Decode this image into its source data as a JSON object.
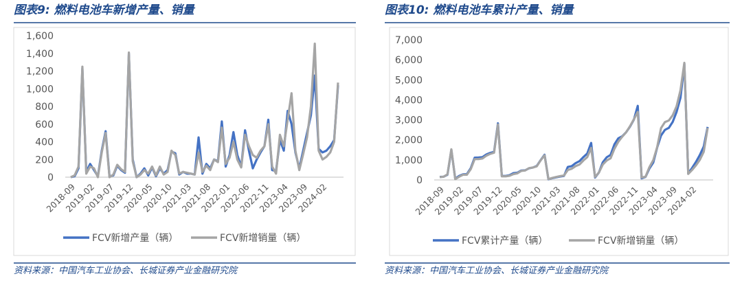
{
  "chart_data": [
    {
      "type": "line",
      "title": "图表9: 燃料电池车新增产量、销量",
      "source": "资料来源：中国汽车工业协会、长城证券产业金融研究院",
      "categories": [
        "2018-09",
        null,
        null,
        null,
        null,
        "2019-02",
        null,
        null,
        null,
        null,
        "2019-07",
        null,
        null,
        null,
        null,
        "2019-12",
        null,
        null,
        null,
        null,
        "2020-05",
        null,
        null,
        null,
        null,
        "2020-10",
        null,
        null,
        null,
        null,
        "2021-03",
        null,
        null,
        null,
        null,
        "2021-08",
        null,
        null,
        null,
        null,
        "2022-01",
        null,
        null,
        null,
        null,
        "2022-06",
        null,
        null,
        null,
        null,
        "2022-11",
        null,
        null,
        null,
        null,
        "2023-04",
        null,
        null,
        null,
        null,
        "2023-09",
        null,
        null,
        null,
        null,
        "2024-02",
        null,
        null,
        null,
        null
      ],
      "series": [
        {
          "name": "FCV新增产量（辆）",
          "color": "#4472c4",
          "values": [
            0,
            10,
            100,
            1230,
            60,
            150,
            80,
            10,
            300,
            520,
            10,
            20,
            130,
            80,
            50,
            1400,
            200,
            0,
            40,
            100,
            20,
            110,
            10,
            100,
            40,
            80,
            290,
            270,
            30,
            60,
            40,
            40,
            30,
            450,
            40,
            150,
            100,
            200,
            180,
            630,
            120,
            250,
            510,
            250,
            120,
            530,
            300,
            100,
            200,
            280,
            350,
            650,
            80,
            70,
            420,
            300,
            750,
            600,
            280,
            100,
            300,
            500,
            700,
            1150,
            320,
            280,
            300,
            350,
            420,
            1040
          ]
        },
        {
          "name": "FCV新增销量（辆）",
          "color": "#a5a5a5",
          "values": [
            0,
            20,
            120,
            1250,
            40,
            120,
            100,
            0,
            280,
            500,
            0,
            30,
            140,
            90,
            60,
            1410,
            180,
            0,
            30,
            80,
            40,
            120,
            20,
            120,
            30,
            60,
            300,
            250,
            40,
            60,
            50,
            40,
            30,
            280,
            60,
            130,
            80,
            200,
            170,
            560,
            150,
            220,
            400,
            200,
            110,
            480,
            350,
            250,
            220,
            300,
            350,
            600,
            120,
            40,
            480,
            350,
            650,
            950,
            300,
            80,
            260,
            450,
            800,
            1510,
            300,
            200,
            230,
            280,
            400,
            1070
          ]
        }
      ],
      "ylim": [
        0,
        1600
      ],
      "yticks": [
        0,
        200,
        400,
        600,
        800,
        {
          "value": 1000,
          "label": "1,000"
        },
        {
          "value": 1200,
          "label": "1,200"
        },
        {
          "value": 1400,
          "label": "1,400"
        },
        {
          "value": 1600,
          "label": "1,600"
        }
      ]
    },
    {
      "type": "line",
      "title": "图表10: 燃料电池车累计产量、销量",
      "source": "资料来源：中国汽车工业协会、长城证券产业金融研究院",
      "categories": [
        "2018-09",
        null,
        null,
        null,
        null,
        "2019-02",
        null,
        null,
        null,
        null,
        "2019-07",
        null,
        null,
        null,
        null,
        "2019-12",
        null,
        null,
        null,
        null,
        "2020-05",
        null,
        null,
        null,
        null,
        "2020-10",
        null,
        null,
        null,
        null,
        "2021-03",
        null,
        null,
        null,
        null,
        "2021-08",
        null,
        null,
        null,
        null,
        "2022-01",
        null,
        null,
        null,
        null,
        "2022-06",
        null,
        null,
        null,
        null,
        "2022-11",
        null,
        null,
        null,
        null,
        "2023-04",
        null,
        null,
        null,
        null,
        "2023-09",
        null,
        null,
        null,
        null,
        "2024-02",
        null,
        null,
        null,
        null
      ],
      "series": [
        {
          "name": "FCV累计产量（辆）",
          "color": "#4472c4",
          "values": [
            150,
            160,
            260,
            1500,
            60,
            200,
            280,
            290,
            590,
            1110,
            1120,
            1140,
            1270,
            1350,
            1400,
            2830,
            200,
            200,
            240,
            340,
            360,
            470,
            480,
            580,
            620,
            700,
            990,
            1260,
            30,
            90,
            130,
            170,
            200,
            650,
            690,
            840,
            940,
            1140,
            1320,
            1850,
            120,
            370,
            880,
            1130,
            1250,
            1780,
            2080,
            2180,
            2380,
            2660,
            3010,
            3700,
            80,
            150,
            570,
            870,
            1620,
            2220,
            2500,
            2600,
            2900,
            3400,
            4100,
            5800,
            320,
            600,
            900,
            1250,
            1670,
            2650
          ]
        },
        {
          "name": "FCV新增销量（辆）",
          "color": "#a5a5a5",
          "values": [
            140,
            160,
            280,
            1530,
            40,
            160,
            260,
            260,
            540,
            1040,
            1040,
            1070,
            1210,
            1300,
            1360,
            2770,
            180,
            180,
            210,
            290,
            330,
            450,
            470,
            590,
            620,
            680,
            980,
            1230,
            40,
            100,
            150,
            190,
            220,
            500,
            560,
            690,
            770,
            970,
            1140,
            1600,
            150,
            370,
            770,
            970,
            1080,
            1560,
            1910,
            2160,
            2380,
            2680,
            3030,
            3400,
            120,
            160,
            640,
            990,
            1640,
            2590,
            2890,
            2970,
            3230,
            3680,
            4480,
            5850,
            300,
            500,
            730,
            1010,
            1410,
            2600
          ]
        }
      ],
      "ylim": [
        0,
        7000
      ],
      "yticks": [
        0,
        {
          "value": 1000,
          "label": "1,000"
        },
        {
          "value": 2000,
          "label": "2,000"
        },
        {
          "value": 3000,
          "label": "3,000"
        },
        {
          "value": 4000,
          "label": "4,000"
        },
        {
          "value": 5000,
          "label": "5,000"
        },
        {
          "value": 6000,
          "label": "6,000"
        },
        {
          "value": 7000,
          "label": "7,000"
        }
      ]
    }
  ]
}
